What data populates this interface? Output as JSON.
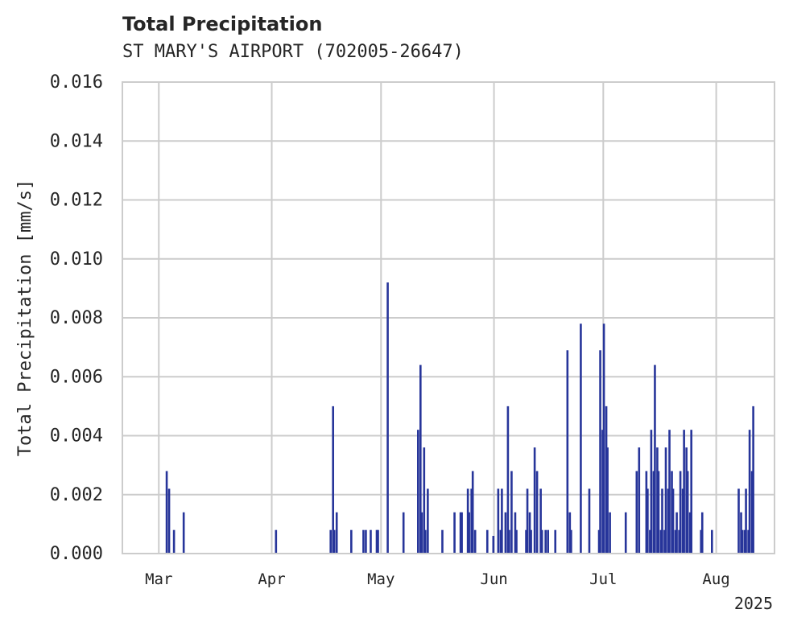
{
  "chart_data": {
    "type": "bar",
    "title": "Total Precipitation",
    "subtitle": "ST MARY'S AIRPORT (702005-26647)",
    "ylabel": "Total Precipitation [mm/s]",
    "xlabel": "",
    "ylim": [
      0,
      0.016
    ],
    "yticks": [
      "0.000",
      "0.002",
      "0.004",
      "0.006",
      "0.008",
      "0.010",
      "0.012",
      "0.014",
      "0.016"
    ],
    "x_range": [
      "2025-02-19",
      "2025-08-17"
    ],
    "xticks": [
      {
        "date": "2025-03-01",
        "label": "Mar"
      },
      {
        "date": "2025-04-01",
        "label": "Apr"
      },
      {
        "date": "2025-05-01",
        "label": "May"
      },
      {
        "date": "2025-06-01",
        "label": "Jun"
      },
      {
        "date": "2025-07-01",
        "label": "Jul"
      },
      {
        "date": "2025-08-01",
        "label": "Aug"
      }
    ],
    "year_label": "2025",
    "grid": true,
    "bar_color": "#27359a",
    "series": [
      {
        "x": [
          "2025-03-03",
          "2025-03-03",
          "2025-03-05",
          "2025-03-07",
          "2025-04-02",
          "2025-04-17",
          "2025-04-17",
          "2025-04-18",
          "2025-04-18",
          "2025-04-22",
          "2025-04-26",
          "2025-04-26",
          "2025-04-28",
          "2025-04-29",
          "2025-04-30",
          "2025-05-02",
          "2025-05-07",
          "2025-05-11",
          "2025-05-11",
          "2025-05-12",
          "2025-05-12",
          "2025-05-13",
          "2025-05-13",
          "2025-05-17",
          "2025-05-21",
          "2025-05-22",
          "2025-05-23",
          "2025-05-24",
          "2025-05-25",
          "2025-05-25",
          "2025-05-26",
          "2025-05-26",
          "2025-05-30",
          "2025-05-31",
          "2025-06-02",
          "2025-06-02",
          "2025-06-03",
          "2025-06-04",
          "2025-06-04",
          "2025-06-05",
          "2025-06-05",
          "2025-06-06",
          "2025-06-07",
          "2025-06-09",
          "2025-06-10",
          "2025-06-10",
          "2025-06-11",
          "2025-06-12",
          "2025-06-12",
          "2025-06-13",
          "2025-06-14",
          "2025-06-15",
          "2025-06-15",
          "2025-06-17",
          "2025-06-21",
          "2025-06-21",
          "2025-06-22",
          "2025-06-24",
          "2025-06-27",
          "2025-06-29",
          "2025-06-30",
          "2025-06-30",
          "2025-07-01",
          "2025-07-01",
          "2025-07-02",
          "2025-07-02",
          "2025-07-07",
          "2025-07-10",
          "2025-07-10",
          "2025-07-12",
          "2025-07-13",
          "2025-07-13",
          "2025-07-14",
          "2025-07-14",
          "2025-07-15",
          "2025-07-15",
          "2025-07-16",
          "2025-07-16",
          "2025-07-17",
          "2025-07-17",
          "2025-07-18",
          "2025-07-18",
          "2025-07-19",
          "2025-07-19",
          "2025-07-20",
          "2025-07-20",
          "2025-07-21",
          "2025-07-21",
          "2025-07-22",
          "2025-07-22",
          "2025-07-23",
          "2025-07-23",
          "2025-07-24",
          "2025-07-24",
          "2025-07-25",
          "2025-07-27",
          "2025-07-28",
          "2025-07-30",
          "2025-08-07",
          "2025-08-07",
          "2025-08-08",
          "2025-08-08",
          "2025-08-09",
          "2025-08-09",
          "2025-08-10",
          "2025-08-10",
          "2025-08-11"
        ],
        "values": [
          0.0028,
          0.0022,
          0.0008,
          0.0014,
          0.0008,
          0.005,
          0.0008,
          0.0014,
          0.0008,
          0.0008,
          0.0008,
          0.0008,
          0.0008,
          0.0008,
          0.0008,
          0.0092,
          0.0014,
          0.0064,
          0.0042,
          0.0036,
          0.0014,
          0.0022,
          0.0008,
          0.0008,
          0.0014,
          0.0014,
          0.0014,
          0.0022,
          0.0014,
          0.0022,
          0.0028,
          0.0008,
          0.0008,
          0.0006,
          0.0022,
          0.0008,
          0.0022,
          0.005,
          0.0014,
          0.0028,
          0.0008,
          0.0014,
          0.0008,
          0.0008,
          0.0022,
          0.0014,
          0.0008,
          0.0028,
          0.0036,
          0.0022,
          0.0008,
          0.0008,
          0.0008,
          0.0008,
          0.0069,
          0.0014,
          0.0008,
          0.0078,
          0.0022,
          0.0008,
          0.0069,
          0.0042,
          0.0078,
          0.005,
          0.0036,
          0.0014,
          0.0014,
          0.0036,
          0.0028,
          0.0028,
          0.0022,
          0.0008,
          0.0042,
          0.0028,
          0.0064,
          0.0036,
          0.0028,
          0.0008,
          0.0022,
          0.0008,
          0.0036,
          0.0022,
          0.0042,
          0.0028,
          0.0022,
          0.0008,
          0.0014,
          0.0008,
          0.0028,
          0.0022,
          0.0042,
          0.0036,
          0.0028,
          0.0014,
          0.0042,
          0.0008,
          0.0014,
          0.0008,
          0.0022,
          0.0014,
          0.0008,
          0.0008,
          0.0022,
          0.0008,
          0.0042,
          0.0028,
          0.005
        ]
      }
    ]
  }
}
